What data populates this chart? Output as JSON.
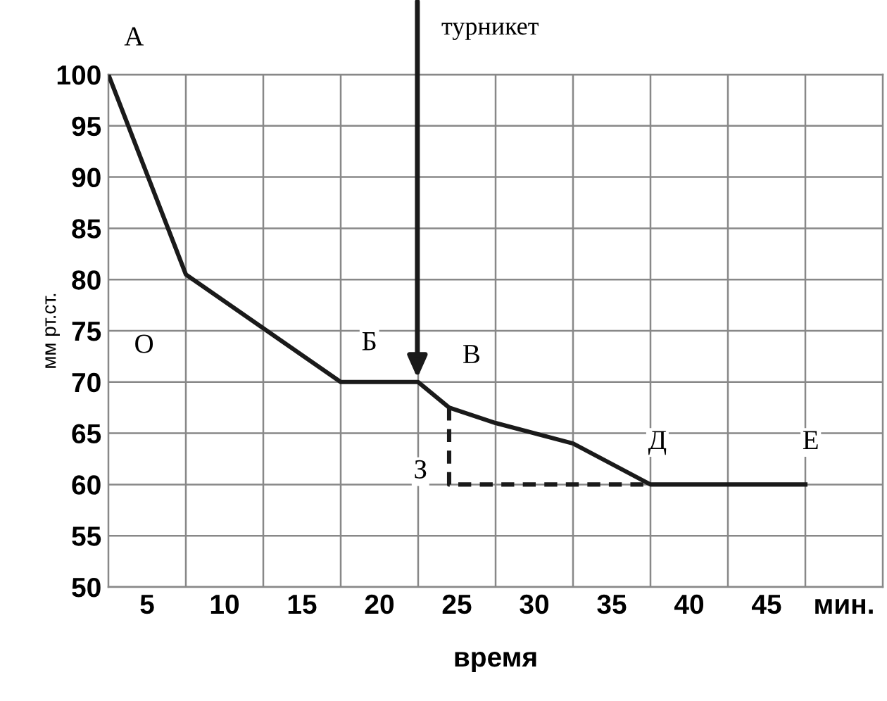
{
  "chart_data": {
    "type": "line",
    "xlabel": "время",
    "ylabel": "мм рт.ст.",
    "series": [
      {
        "color": "#1a1a1a",
        "line_style": "solid",
        "x": [
          2.5,
          7.5,
          17.5,
          22.5,
          24.5,
          27.5,
          32.5,
          37.5,
          47.5
        ],
        "values": [
          100,
          80.5,
          70,
          70,
          67.5,
          66,
          64,
          60,
          60
        ]
      },
      {
        "color": "#1a1a1a",
        "line_style": "dashed",
        "x": [
          24.5,
          24.5,
          37.5
        ],
        "values": [
          67.5,
          60,
          60
        ]
      }
    ],
    "xlim": [
      2.5,
      52.5
    ],
    "ylim": [
      50,
      100
    ],
    "xticks": [
      5,
      10,
      15,
      20,
      25,
      30,
      35,
      40,
      45,
      {
        "value": 50,
        "label": "мин."
      },
      {
        "value": 7.5,
        "label": null
      },
      {
        "value": 12.5,
        "label": null
      },
      {
        "value": 17.5,
        "label": null
      },
      {
        "value": 22.5,
        "label": null
      },
      {
        "value": 27.5,
        "label": null
      },
      {
        "value": 32.5,
        "label": null
      },
      {
        "value": 37.5,
        "label": null
      },
      {
        "value": 42.5,
        "label": null
      },
      {
        "value": 47.5,
        "label": null
      }
    ],
    "yticks": [
      50,
      55,
      60,
      65,
      70,
      75,
      80,
      85,
      90,
      95,
      100
    ],
    "grid": true,
    "marker": "none",
    "annotations": [
      "турникет",
      "А",
      "О",
      "Б",
      "В",
      "З",
      "Д",
      "Е"
    ]
  }
}
